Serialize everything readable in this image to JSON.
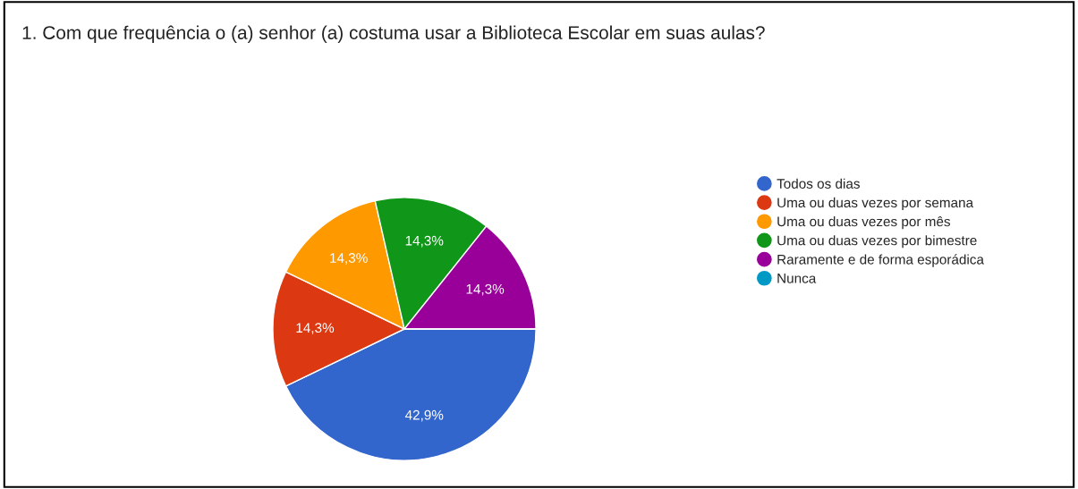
{
  "chart_data": {
    "type": "pie",
    "title": "1. Com que frequência o (a) senhor (a) costuma usar a Biblioteca Escolar em suas aulas?",
    "categories": [
      "Todos os dias",
      "Uma ou duas vezes por semana",
      "Uma ou duas vezes por mês",
      "Uma ou duas vezes por bimestre",
      "Raramente e de forma esporádica",
      "Nunca"
    ],
    "values": [
      42.9,
      14.3,
      14.3,
      14.3,
      14.3,
      0
    ],
    "colors": [
      "#3366cc",
      "#dc3912",
      "#ff9900",
      "#109618",
      "#990099",
      "#0099c6"
    ],
    "value_labels": [
      "42,9%",
      "14,3%",
      "14,3%",
      "14,3%",
      "14,3%",
      null
    ],
    "legend": "right",
    "marker": "circle"
  }
}
